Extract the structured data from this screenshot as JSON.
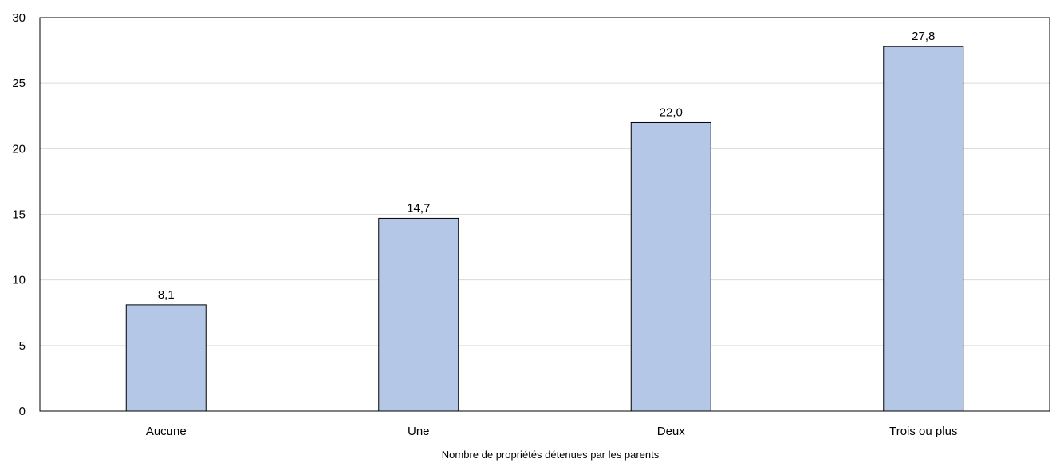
{
  "chart_data": {
    "type": "bar",
    "categories": [
      "Aucune",
      "Une",
      "Deux",
      "Trois ou plus"
    ],
    "values": [
      8.1,
      14.7,
      22.0,
      27.8
    ],
    "value_labels": [
      "8,1",
      "14,7",
      "22,0",
      "27,8"
    ],
    "title": "",
    "xlabel": "Nombre de propriétés détenues par les parents",
    "ylabel": "",
    "ylim": [
      0,
      30
    ],
    "yticks": [
      0,
      5,
      10,
      15,
      20,
      25,
      30
    ],
    "grid": true,
    "legend": "none",
    "colors": {
      "bar_fill": "#b4c7e7",
      "bar_stroke": "#000000",
      "grid": "#d9d9d9"
    }
  }
}
